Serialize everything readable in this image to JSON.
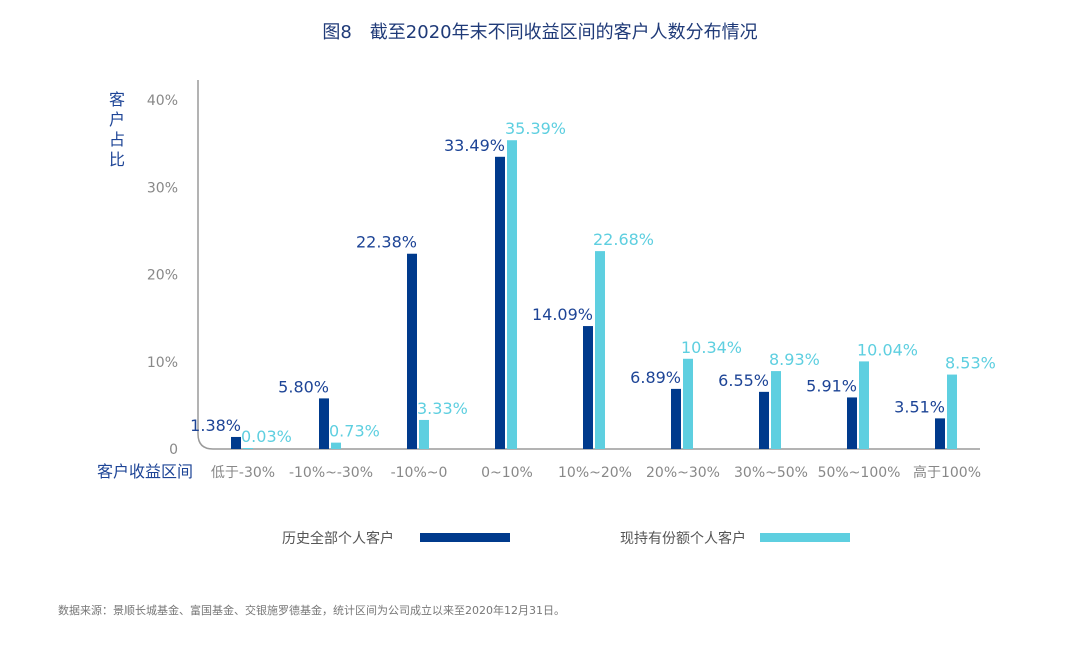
{
  "chart_data": {
    "type": "bar",
    "title": "图8　截至2020年末不同收益区间的客户人数分布情况",
    "xlabel": "客户收益区间",
    "ylabel": "客户占比",
    "ylim": [
      0,
      40
    ],
    "yticks": [
      "0",
      "10%",
      "20%",
      "30%",
      "40%"
    ],
    "yticks_values": [
      0,
      10,
      20,
      30,
      40
    ],
    "categories": [
      "低于-30%",
      "-10%~-30%",
      "-10%~0",
      "0~10%",
      "10%~20%",
      "20%~30%",
      "30%~50%",
      "50%~100%",
      "高于100%"
    ],
    "series": [
      {
        "name": "历史全部个人客户",
        "color": "#003a8c",
        "label_color": "#1d4496",
        "values": [
          1.38,
          5.8,
          22.38,
          33.49,
          14.09,
          6.89,
          6.55,
          5.91,
          3.51
        ],
        "labels": [
          "1.38%",
          "5.80%",
          "22.38%",
          "33.49%",
          "14.09%",
          "6.89%",
          "6.55%",
          "5.91%",
          "3.51%"
        ]
      },
      {
        "name": "现持有份额个人客户",
        "color": "#5ecfe0",
        "label_color": "#5ecfe0",
        "values": [
          0.03,
          0.73,
          3.33,
          35.39,
          22.68,
          10.34,
          8.93,
          10.04,
          8.53
        ],
        "labels": [
          "0.03%",
          "0.73%",
          "3.33%",
          "35.39%",
          "22.68%",
          "10.34%",
          "8.93%",
          "10.04%",
          "8.53%"
        ]
      }
    ],
    "legend": "bottom",
    "grid": false
  },
  "source": "数据来源：景顺长城基金、富国基金、交银施罗德基金，统计区间为公司成立以来至2020年12月31日。"
}
